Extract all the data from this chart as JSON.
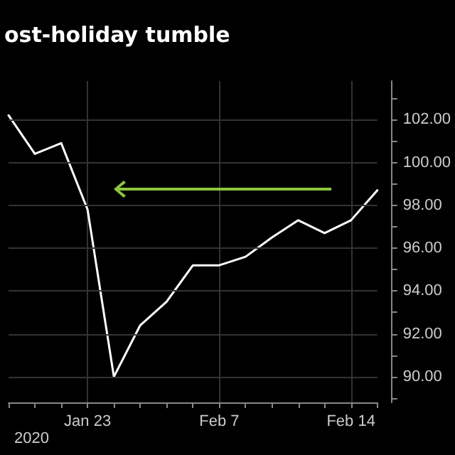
{
  "chart_data": {
    "type": "line",
    "title": "ost-holiday tumble",
    "categories": [
      null,
      null,
      null,
      "Jan 23",
      null,
      null,
      null,
      null,
      "Feb 7",
      null,
      null,
      null,
      null,
      "Feb 14",
      null
    ],
    "series": [
      {
        "color": "#ffffff",
        "values": [
          102.2,
          100.4,
          100.9,
          97.8,
          90.0,
          92.4,
          93.5,
          95.2,
          95.2,
          95.6,
          96.5,
          97.3,
          96.7,
          97.3,
          98.7
        ]
      }
    ],
    "ylim": [
      88.8,
      103.8
    ],
    "yticks": [
      {
        "value": 89,
        "label": null
      },
      {
        "value": 90,
        "label": "90.00"
      },
      {
        "value": 91,
        "label": null
      },
      {
        "value": 92,
        "label": "92.00"
      },
      {
        "value": 93,
        "label": null
      },
      {
        "value": 94,
        "label": "94.00"
      },
      {
        "value": 95,
        "label": null
      },
      {
        "value": 96,
        "label": "96.00"
      },
      {
        "value": 97,
        "label": null
      },
      {
        "value": 98,
        "label": "98.00"
      },
      {
        "value": 99,
        "label": null
      },
      {
        "value": 100,
        "label": "100.00"
      },
      {
        "value": 101,
        "label": null
      },
      {
        "value": 102,
        "label": "102.00"
      },
      {
        "value": 103,
        "label": null
      }
    ],
    "grid": true,
    "marker": "none",
    "line_style": "solid",
    "annotations": [
      "2020"
    ]
  }
}
